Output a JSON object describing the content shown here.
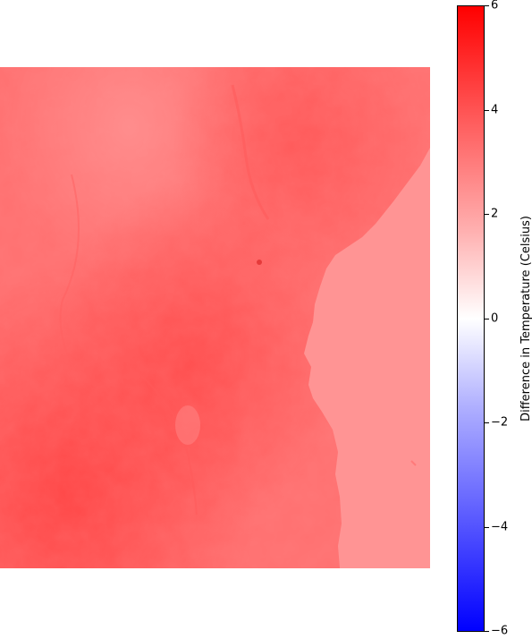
{
  "colorbar": {
    "label": "Difference in Temperature (Celsius)",
    "min": -6,
    "max": 6,
    "ticks": [
      {
        "value": 6,
        "label": "6"
      },
      {
        "value": 4,
        "label": "4"
      },
      {
        "value": 2,
        "label": "2"
      },
      {
        "value": 0,
        "label": "0"
      },
      {
        "value": -2,
        "label": "−2"
      },
      {
        "value": -4,
        "label": "−4"
      },
      {
        "value": -6,
        "label": "−6"
      }
    ],
    "colormap": "bwr",
    "colors": {
      "max": "#ff0000",
      "mid": "#ffffff",
      "min": "#0000ff"
    }
  },
  "map": {
    "ocean_color": "#ff9494",
    "land_colors": {
      "light": "#ff8a8a",
      "medium": "#ff6a6a",
      "strong": "#ff4d4d"
    },
    "ocean_value_celsius": 2.6,
    "land_value_range_celsius": [
      2.8,
      4.2
    ]
  }
}
